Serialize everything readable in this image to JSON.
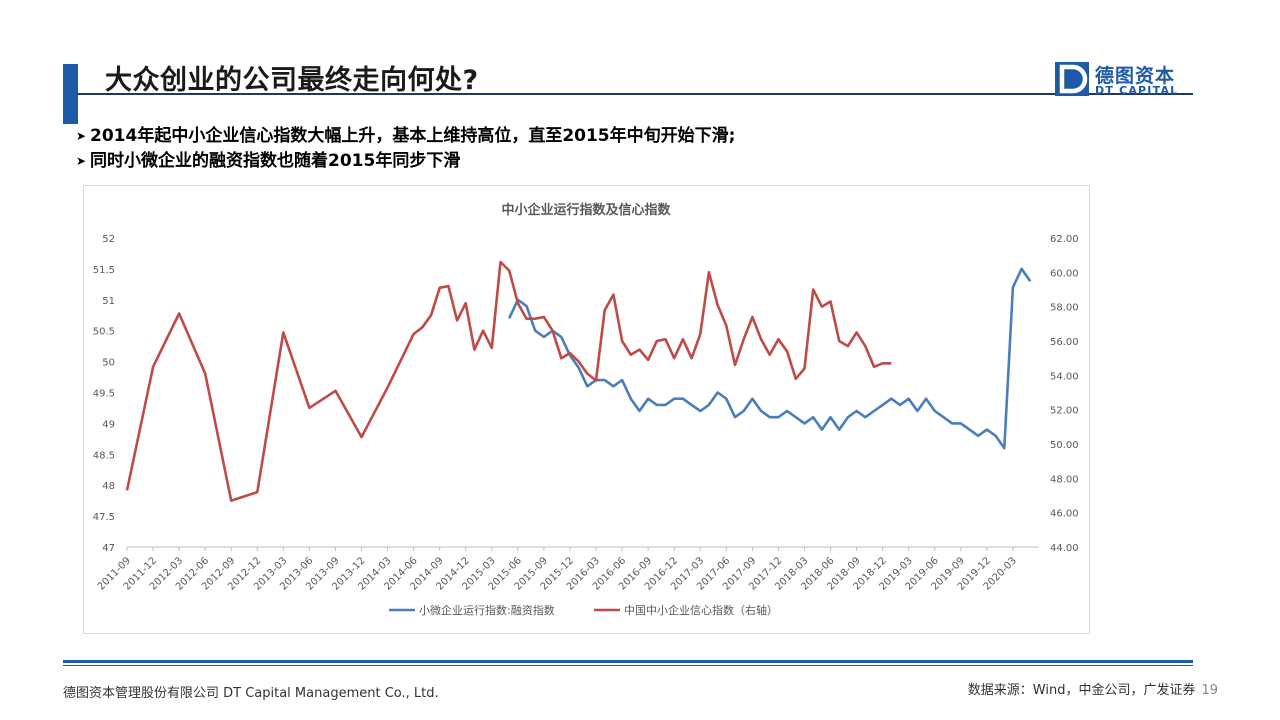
{
  "slide": {
    "title": "大众创业的公司最终走向何处?",
    "bullets": [
      "2014年起中小企业信心指数大幅上升，基本上维持高位，直至2015年中旬开始下滑;",
      "同时小微企业的融资指数也随着2015年同步下滑"
    ],
    "bullet_symbol": "➤"
  },
  "logo": {
    "cn": "德图资本",
    "en": "DT CAPITAL",
    "mark": "D"
  },
  "footer": {
    "company": "德图资本管理股份有限公司  DT Capital Management  Co., Ltd.",
    "source": "数据来源：Wind，中金公司，广发证券",
    "page": "19"
  },
  "colors": {
    "brand": "#1f5aa6",
    "series_left": "#4a7ebb",
    "series_right": "#be4b48"
  },
  "chart_data": {
    "type": "line",
    "title": "中小企业运行指数及信心指数",
    "x_tick_labels": [
      "2011-09",
      "2011-12",
      "2012-03",
      "2012-06",
      "2012-09",
      "2012-12",
      "2013-03",
      "2013-06",
      "2013-09",
      "2013-12",
      "2014-03",
      "2014-06",
      "2014-09",
      "2014-12",
      "2015-03",
      "2015-06",
      "2015-09",
      "2015-12",
      "2016-03",
      "2016-06",
      "2016-09",
      "2016-12",
      "2017-03",
      "2017-06",
      "2017-09",
      "2017-12",
      "2018-03",
      "2018-06",
      "2018-09",
      "2018-12",
      "2019-03",
      "2019-06",
      "2019-09",
      "2019-12",
      "2020-03"
    ],
    "y_left": {
      "min": 47,
      "max": 52,
      "step": 0.5,
      "tick_labels": [
        "47",
        "47.5",
        "48",
        "48.5",
        "49",
        "49.5",
        "50",
        "50.5",
        "51",
        "51.5",
        "52"
      ]
    },
    "y_right": {
      "min": 44,
      "max": 62,
      "step": 2,
      "tick_labels": [
        "44.00",
        "46.00",
        "48.00",
        "50.00",
        "52.00",
        "54.00",
        "56.00",
        "58.00",
        "60.00",
        "62.00"
      ]
    },
    "legend_position": "bottom",
    "series": [
      {
        "name": "小微企业运行指数:融资指数",
        "axis": "left",
        "color": "#4a7ebb",
        "points": [
          [
            "2015-05",
            50.7
          ],
          [
            "2015-06",
            51.0
          ],
          [
            "2015-07",
            50.9
          ],
          [
            "2015-08",
            50.5
          ],
          [
            "2015-09",
            50.4
          ],
          [
            "2015-10",
            50.5
          ],
          [
            "2015-11",
            50.4
          ],
          [
            "2015-12",
            50.1
          ],
          [
            "2016-01",
            49.9
          ],
          [
            "2016-02",
            49.6
          ],
          [
            "2016-03",
            49.7
          ],
          [
            "2016-04",
            49.7
          ],
          [
            "2016-05",
            49.6
          ],
          [
            "2016-06",
            49.7
          ],
          [
            "2016-07",
            49.4
          ],
          [
            "2016-08",
            49.2
          ],
          [
            "2016-09",
            49.4
          ],
          [
            "2016-10",
            49.3
          ],
          [
            "2016-11",
            49.3
          ],
          [
            "2016-12",
            49.4
          ],
          [
            "2017-01",
            49.4
          ],
          [
            "2017-02",
            49.3
          ],
          [
            "2017-03",
            49.2
          ],
          [
            "2017-04",
            49.3
          ],
          [
            "2017-05",
            49.5
          ],
          [
            "2017-06",
            49.4
          ],
          [
            "2017-07",
            49.1
          ],
          [
            "2017-08",
            49.2
          ],
          [
            "2017-09",
            49.4
          ],
          [
            "2017-10",
            49.2
          ],
          [
            "2017-11",
            49.1
          ],
          [
            "2017-12",
            49.1
          ],
          [
            "2018-01",
            49.2
          ],
          [
            "2018-02",
            49.1
          ],
          [
            "2018-03",
            49.0
          ],
          [
            "2018-04",
            49.1
          ],
          [
            "2018-05",
            48.9
          ],
          [
            "2018-06",
            49.1
          ],
          [
            "2018-07",
            48.9
          ],
          [
            "2018-08",
            49.1
          ],
          [
            "2018-09",
            49.2
          ],
          [
            "2018-10",
            49.1
          ],
          [
            "2018-11",
            49.2
          ],
          [
            "2018-12",
            49.3
          ],
          [
            "2019-01",
            49.4
          ],
          [
            "2019-02",
            49.3
          ],
          [
            "2019-03",
            49.4
          ],
          [
            "2019-04",
            49.2
          ],
          [
            "2019-05",
            49.4
          ],
          [
            "2019-06",
            49.2
          ],
          [
            "2019-07",
            49.1
          ],
          [
            "2019-08",
            49.0
          ],
          [
            "2019-09",
            49.0
          ],
          [
            "2019-10",
            48.9
          ],
          [
            "2019-11",
            48.8
          ],
          [
            "2019-12",
            48.9
          ],
          [
            "2020-01",
            48.8
          ],
          [
            "2020-02",
            48.6
          ],
          [
            "2020-03",
            51.2
          ],
          [
            "2020-04",
            51.5
          ],
          [
            "2020-05",
            51.3
          ]
        ]
      },
      {
        "name": "中国中小企业信心指数（右轴）",
        "axis": "right",
        "color": "#be4b48",
        "points": [
          [
            "2011-09",
            47.3
          ],
          [
            "2011-12",
            54.5
          ],
          [
            "2012-03",
            57.6
          ],
          [
            "2012-06",
            54.1
          ],
          [
            "2012-09",
            46.7
          ],
          [
            "2012-12",
            47.2
          ],
          [
            "2013-03",
            56.5
          ],
          [
            "2013-06",
            52.1
          ],
          [
            "2013-09",
            53.1
          ],
          [
            "2013-12",
            50.4
          ],
          [
            "2014-03",
            53.3
          ],
          [
            "2014-06",
            56.4
          ],
          [
            "2014-07",
            56.8
          ],
          [
            "2014-08",
            57.5
          ],
          [
            "2014-09",
            59.1
          ],
          [
            "2014-10",
            59.2
          ],
          [
            "2014-11",
            57.2
          ],
          [
            "2014-12",
            58.2
          ],
          [
            "2015-01",
            55.5
          ],
          [
            "2015-02",
            56.6
          ],
          [
            "2015-03",
            55.6
          ],
          [
            "2015-04",
            60.6
          ],
          [
            "2015-05",
            60.1
          ],
          [
            "2015-06",
            58.2
          ],
          [
            "2015-07",
            57.3
          ],
          [
            "2015-08",
            57.3
          ],
          [
            "2015-09",
            57.4
          ],
          [
            "2015-10",
            56.6
          ],
          [
            "2015-11",
            55.0
          ],
          [
            "2015-12",
            55.3
          ],
          [
            "2016-01",
            54.8
          ],
          [
            "2016-02",
            54.1
          ],
          [
            "2016-03",
            53.7
          ],
          [
            "2016-04",
            57.8
          ],
          [
            "2016-05",
            58.7
          ],
          [
            "2016-06",
            56.0
          ],
          [
            "2016-07",
            55.2
          ],
          [
            "2016-08",
            55.5
          ],
          [
            "2016-09",
            54.9
          ],
          [
            "2016-10",
            56.0
          ],
          [
            "2016-11",
            56.1
          ],
          [
            "2016-12",
            55.0
          ],
          [
            "2017-01",
            56.1
          ],
          [
            "2017-02",
            55.0
          ],
          [
            "2017-03",
            56.4
          ],
          [
            "2017-04",
            60.0
          ],
          [
            "2017-05",
            58.1
          ],
          [
            "2017-06",
            56.9
          ],
          [
            "2017-07",
            54.6
          ],
          [
            "2017-08",
            56.1
          ],
          [
            "2017-09",
            57.4
          ],
          [
            "2017-10",
            56.1
          ],
          [
            "2017-11",
            55.2
          ],
          [
            "2017-12",
            56.1
          ],
          [
            "2018-01",
            55.4
          ],
          [
            "2018-02",
            53.8
          ],
          [
            "2018-03",
            54.4
          ],
          [
            "2018-04",
            59.0
          ],
          [
            "2018-05",
            58.0
          ],
          [
            "2018-06",
            58.3
          ],
          [
            "2018-07",
            56.0
          ],
          [
            "2018-08",
            55.7
          ],
          [
            "2018-09",
            56.5
          ],
          [
            "2018-10",
            55.7
          ],
          [
            "2018-11",
            54.5
          ],
          [
            "2018-12",
            54.7
          ],
          [
            "2019-01",
            54.7
          ]
        ]
      }
    ]
  }
}
